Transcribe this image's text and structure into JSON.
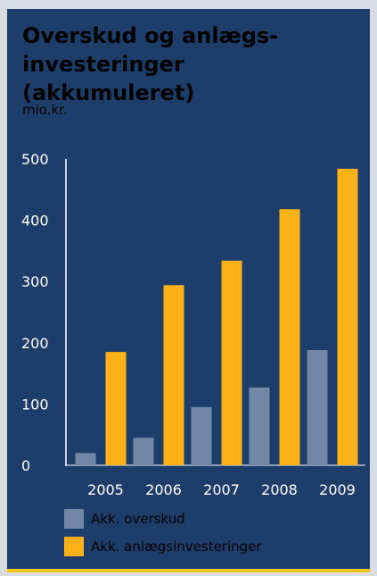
{
  "chart_data": {
    "type": "bar",
    "title": "Overskud og anlægs-investeringer (akkumuleret)",
    "title_lines": [
      "Overskud og anlægs-",
      "investeringer (akkumuleret)"
    ],
    "unit_label": "mio.kr.",
    "categories": [
      "2005",
      "2006",
      "2007",
      "2008",
      "2009"
    ],
    "series": [
      {
        "name": "Akk. overskud",
        "color": "#7088a5",
        "values": [
          20,
          45,
          95,
          127,
          188
        ]
      },
      {
        "name": "Akk. anlægsinvesteringer",
        "color": "#fbb117",
        "values": [
          185,
          294,
          334,
          418,
          484
        ]
      }
    ],
    "yticks": [
      "0",
      "100",
      "200",
      "300",
      "400",
      "500"
    ],
    "ylim": [
      0,
      500
    ],
    "grid": false,
    "legend_position": "bottom"
  }
}
